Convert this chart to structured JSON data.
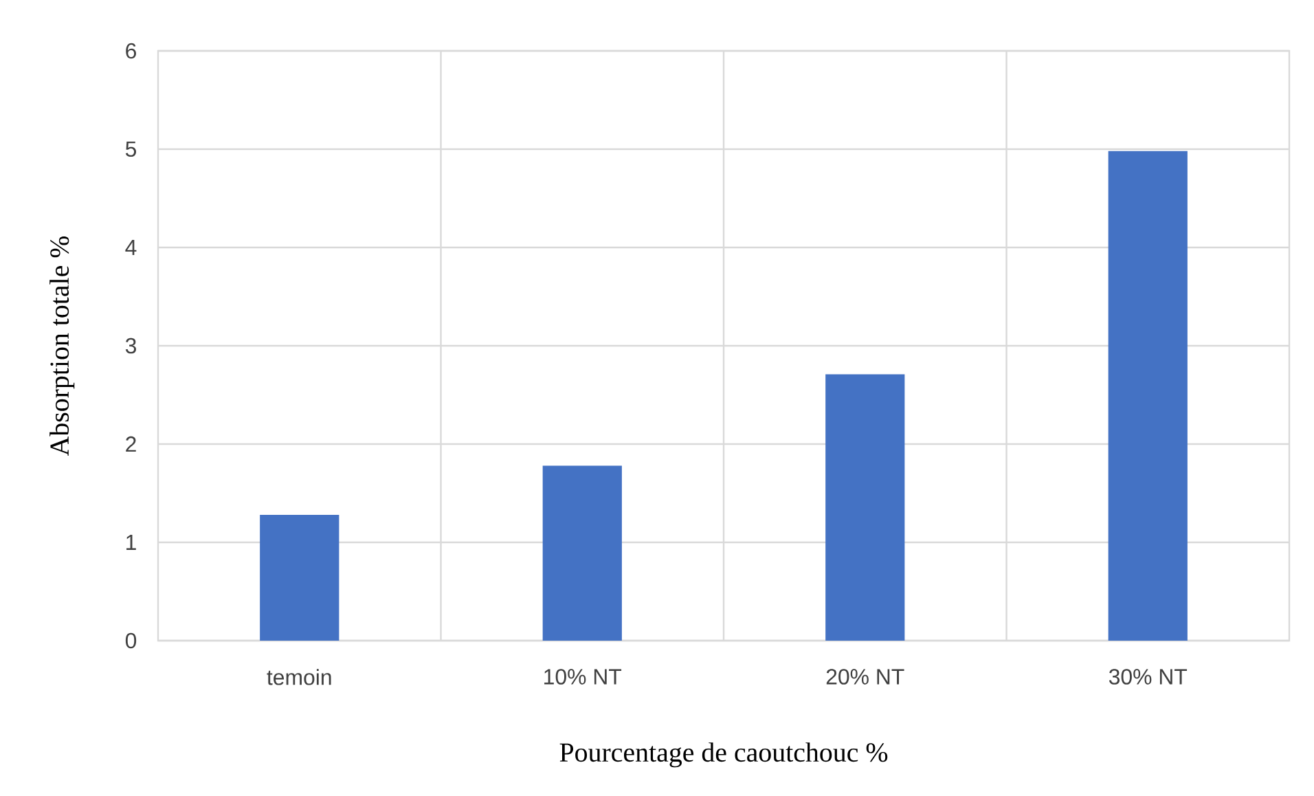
{
  "chart_data": {
    "type": "bar",
    "xlabel": "Pourcentage de caoutchouc %",
    "ylabel": "Absorption totale %",
    "categories": [
      "temoin",
      "10% NT",
      "20% NT",
      "30% NT"
    ],
    "values": [
      1.28,
      1.78,
      2.71,
      4.98
    ],
    "color": "#4472c4",
    "ylim": [
      0,
      6
    ],
    "yticks": [
      0,
      1,
      2,
      3,
      4,
      5,
      6
    ],
    "grid": true
  }
}
